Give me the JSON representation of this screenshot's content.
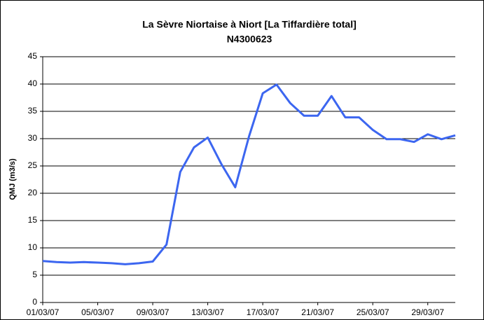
{
  "chart_data": {
    "type": "line",
    "title": "La Sèvre Niortaise à Niort [La Tiffardière total]",
    "subtitle": "N4300623",
    "y_label": "QMJ (m3/s)",
    "categories": [
      "01/03/07",
      null,
      null,
      null,
      "05/03/07",
      null,
      null,
      null,
      "09/03/07",
      null,
      null,
      null,
      "13/03/07",
      null,
      null,
      null,
      "17/03/07",
      null,
      null,
      null,
      "21/03/07",
      null,
      null,
      null,
      "25/03/07",
      null,
      null,
      null,
      "29/03/07",
      null,
      null
    ],
    "series": [
      {
        "name": "QMJ",
        "color": "#3c66f0",
        "values": [
          7.6,
          7.4,
          7.3,
          7.4,
          7.3,
          7.2,
          7.0,
          7.2,
          7.5,
          10.6,
          23.9,
          28.4,
          30.2,
          25.3,
          21.1,
          30.4,
          38.3,
          39.9,
          36.5,
          34.2,
          34.2,
          37.8,
          33.9,
          33.9,
          31.6,
          29.9,
          29.9,
          29.4,
          30.8,
          29.9,
          30.6
        ]
      }
    ],
    "ylim": [
      0,
      45
    ],
    "yticks": [
      0,
      5,
      10,
      15,
      20,
      25,
      30,
      35,
      40,
      45
    ],
    "grid": true
  }
}
